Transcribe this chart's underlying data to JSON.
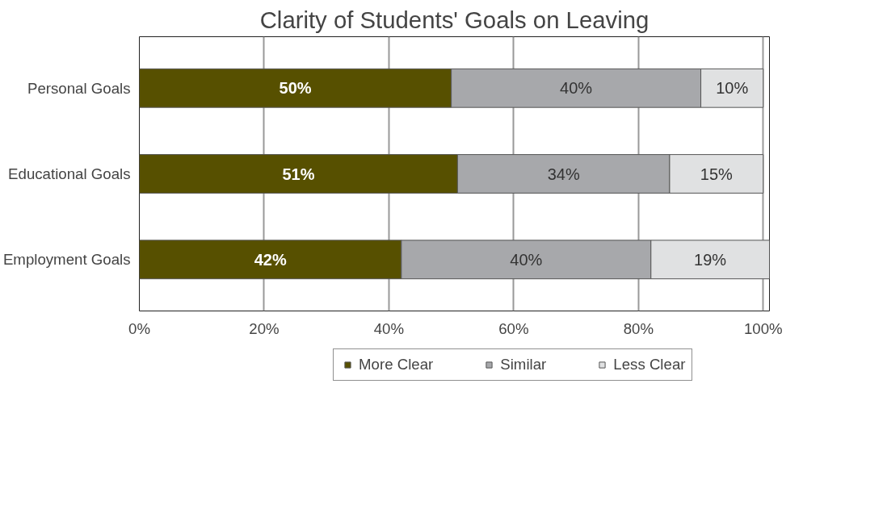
{
  "chart_data": {
    "type": "bar",
    "orientation": "horizontal",
    "stacked": true,
    "title": "Clarity of Students' Goals on Leaving",
    "categories": [
      "Personal Goals",
      "Educational Goals",
      "Employment Goals"
    ],
    "series": [
      {
        "name": "More Clear",
        "color": "#575000",
        "values": [
          50,
          51,
          42
        ],
        "value_labels": [
          "50%",
          "51%",
          "42%"
        ]
      },
      {
        "name": "Similar",
        "color": "#a7a8ab",
        "values": [
          40,
          34,
          40
        ],
        "value_labels": [
          "40%",
          "34%",
          "40%"
        ]
      },
      {
        "name": "Less Clear",
        "color": "#e0e1e2",
        "values": [
          10,
          15,
          19
        ],
        "value_labels": [
          "10%",
          "15%",
          "19%"
        ]
      }
    ],
    "xlim": [
      0,
      101
    ],
    "xticks": [
      {
        "value": 0,
        "label": "0%"
      },
      {
        "value": 20,
        "label": "20%"
      },
      {
        "value": 40,
        "label": "40%"
      },
      {
        "value": 60,
        "label": "60%"
      },
      {
        "value": 80,
        "label": "80%"
      },
      {
        "value": 100,
        "label": "100%"
      }
    ],
    "grid": "x",
    "legend": "bottom"
  }
}
